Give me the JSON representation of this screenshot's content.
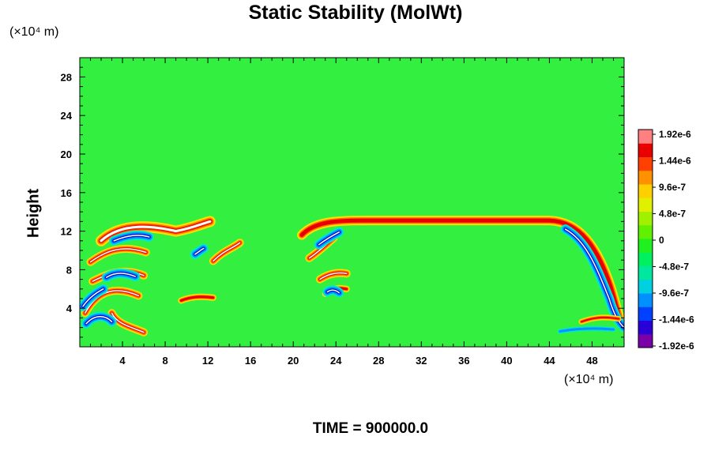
{
  "chart_data": {
    "type": "heatmap",
    "title": "Static Stability (MolWt)",
    "xlabel": "",
    "ylabel": "Height",
    "x_unit": "(×10⁴ m)",
    "y_unit": "(×10⁴ m)",
    "xlim": [
      0,
      51
    ],
    "ylim": [
      0,
      30
    ],
    "x_ticks": [
      4,
      8,
      12,
      16,
      20,
      24,
      28,
      32,
      36,
      40,
      44,
      48
    ],
    "y_ticks": [
      4,
      8,
      12,
      16,
      20,
      24,
      28
    ],
    "colorbar": {
      "range": [
        -1.92e-06,
        1.92e-06
      ],
      "labels": [
        "1.92e-6",
        "1.44e-6",
        "9.6e-7",
        "4.8e-7",
        "0",
        "-4.8e-7",
        "-9.6e-7",
        "-1.44e-6",
        "-1.92e-6"
      ],
      "colors": [
        "#7a00a8",
        "#2a00d8",
        "#0040ff",
        "#0090ff",
        "#00d0e0",
        "#00e8a0",
        "#00f060",
        "#20f020",
        "#60f000",
        "#a0f000",
        "#e0f000",
        "#ffd000",
        "#ff9000",
        "#ff4000",
        "#e80000",
        "#ff8080"
      ]
    },
    "features": [
      {
        "label": "strong positive band",
        "x_range": [
          26,
          44
        ],
        "y": 13
      }
    ],
    "background_value": 0
  },
  "time_label": "TIME = 900000.0"
}
